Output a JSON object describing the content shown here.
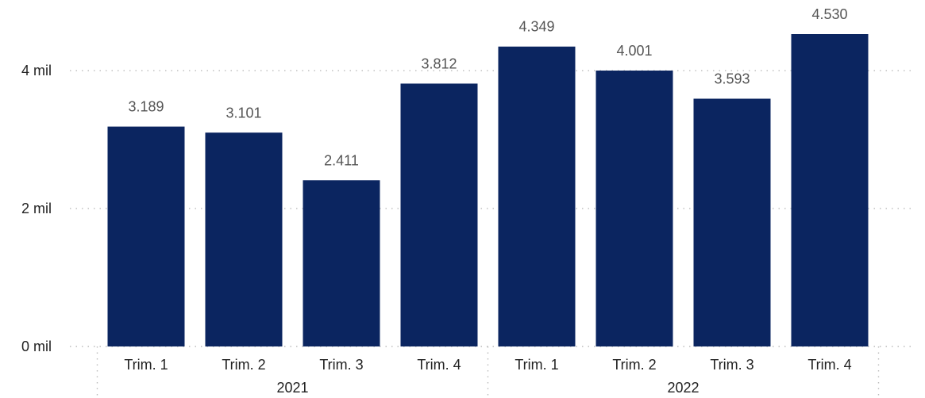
{
  "chart_data": {
    "type": "bar",
    "groups": [
      {
        "label": "2021",
        "categories": [
          "Trim. 1",
          "Trim. 2",
          "Trim. 3",
          "Trim. 4"
        ]
      },
      {
        "label": "2022",
        "categories": [
          "Trim. 1",
          "Trim. 2",
          "Trim. 3",
          "Trim. 4"
        ]
      }
    ],
    "values": [
      3189,
      3101,
      2411,
      3812,
      4349,
      4001,
      3593,
      4530
    ],
    "data_labels": [
      "3.189",
      "3.101",
      "2.411",
      "3.812",
      "4.349",
      "4.001",
      "3.593",
      "4.530"
    ],
    "ylim": [
      0,
      4530
    ],
    "yticks": [
      {
        "value": 0,
        "label": "0 mil"
      },
      {
        "value": 2000,
        "label": "2 mil"
      },
      {
        "value": 4000,
        "label": "4 mil"
      }
    ],
    "bar_color": "#0b2560",
    "grid": true
  }
}
